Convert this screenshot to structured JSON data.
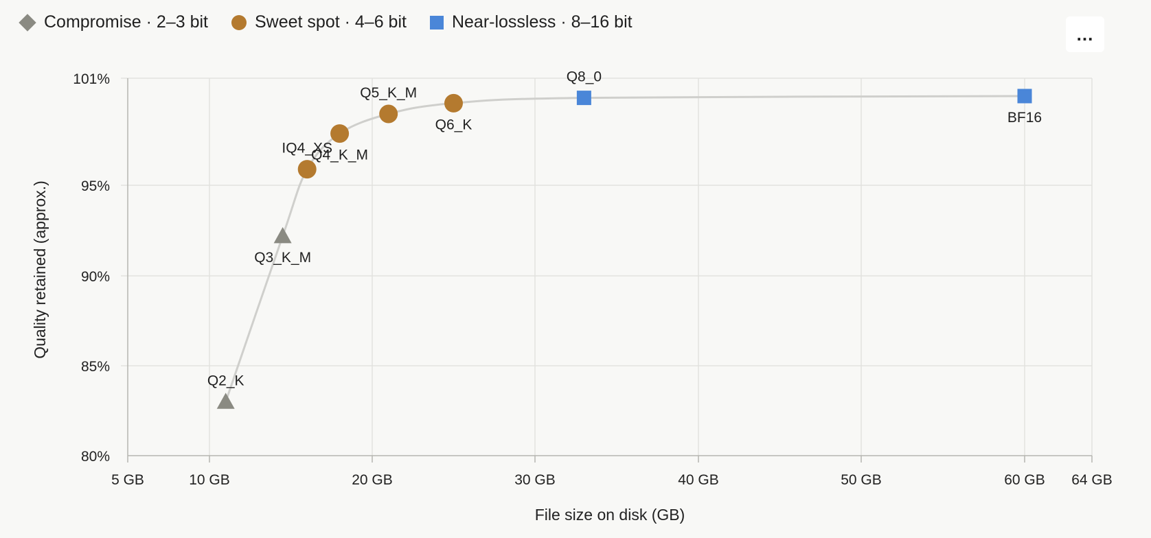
{
  "legend": {
    "items": [
      {
        "label": "Compromise · 2–3 bit",
        "marker": "diamond",
        "color": "#8a8a82"
      },
      {
        "label": "Sweet spot · 4–6 bit",
        "marker": "circle",
        "color": "#b47a2f"
      },
      {
        "label": "Near-lossless · 8–16 bit",
        "marker": "square",
        "color": "#4a86d8"
      }
    ]
  },
  "menu": {
    "label": "..."
  },
  "chart_data": {
    "type": "scatter",
    "xlabel": "File size on disk (GB)",
    "ylabel": "Quality retained (approx.)",
    "xlim": [
      5,
      64
    ],
    "ylim": [
      80,
      101
    ],
    "x_ticks": [
      5,
      10,
      20,
      30,
      40,
      50,
      60,
      64
    ],
    "x_tick_labels": [
      "5 GB",
      "10 GB",
      "20 GB",
      "30 GB",
      "40 GB",
      "50 GB",
      "60 GB",
      "64 GB"
    ],
    "y_ticks": [
      80,
      85,
      90,
      95,
      101
    ],
    "y_tick_labels": [
      "80%",
      "85%",
      "90%",
      "95%",
      "101%"
    ],
    "grid": true,
    "legend_position": "top-left",
    "trend_color": "#cfcfcc",
    "points": [
      {
        "label": "Q2_K",
        "x": 11,
        "y": 83,
        "series": "Compromise · 2–3 bit",
        "marker": "triangle",
        "color": "#8a8a82",
        "label_pos": "above"
      },
      {
        "label": "Q3_K_M",
        "x": 14.5,
        "y": 92.2,
        "series": "Compromise · 2–3 bit",
        "marker": "triangle",
        "color": "#8a8a82",
        "label_pos": "below"
      },
      {
        "label": "IQ4_XS",
        "x": 16,
        "y": 95.9,
        "series": "Sweet spot · 4–6 bit",
        "marker": "circle",
        "color": "#b47a2f",
        "label_pos": "above"
      },
      {
        "label": "Q4_K_M",
        "x": 18,
        "y": 97.9,
        "series": "Sweet spot · 4–6 bit",
        "marker": "circle",
        "color": "#b47a2f",
        "label_pos": "below"
      },
      {
        "label": "Q5_K_M",
        "x": 21,
        "y": 99,
        "series": "Sweet spot · 4–6 bit",
        "marker": "circle",
        "color": "#b47a2f",
        "label_pos": "above"
      },
      {
        "label": "Q6_K",
        "x": 25,
        "y": 99.6,
        "series": "Sweet spot · 4–6 bit",
        "marker": "circle",
        "color": "#b47a2f",
        "label_pos": "below"
      },
      {
        "label": "Q8_0",
        "x": 33,
        "y": 99.9,
        "series": "Near-lossless · 8–16 bit",
        "marker": "square",
        "color": "#4a86d8",
        "label_pos": "above"
      },
      {
        "label": "BF16",
        "x": 60,
        "y": 100,
        "series": "Near-lossless · 8–16 bit",
        "marker": "square",
        "color": "#4a86d8",
        "label_pos": "below"
      }
    ]
  }
}
